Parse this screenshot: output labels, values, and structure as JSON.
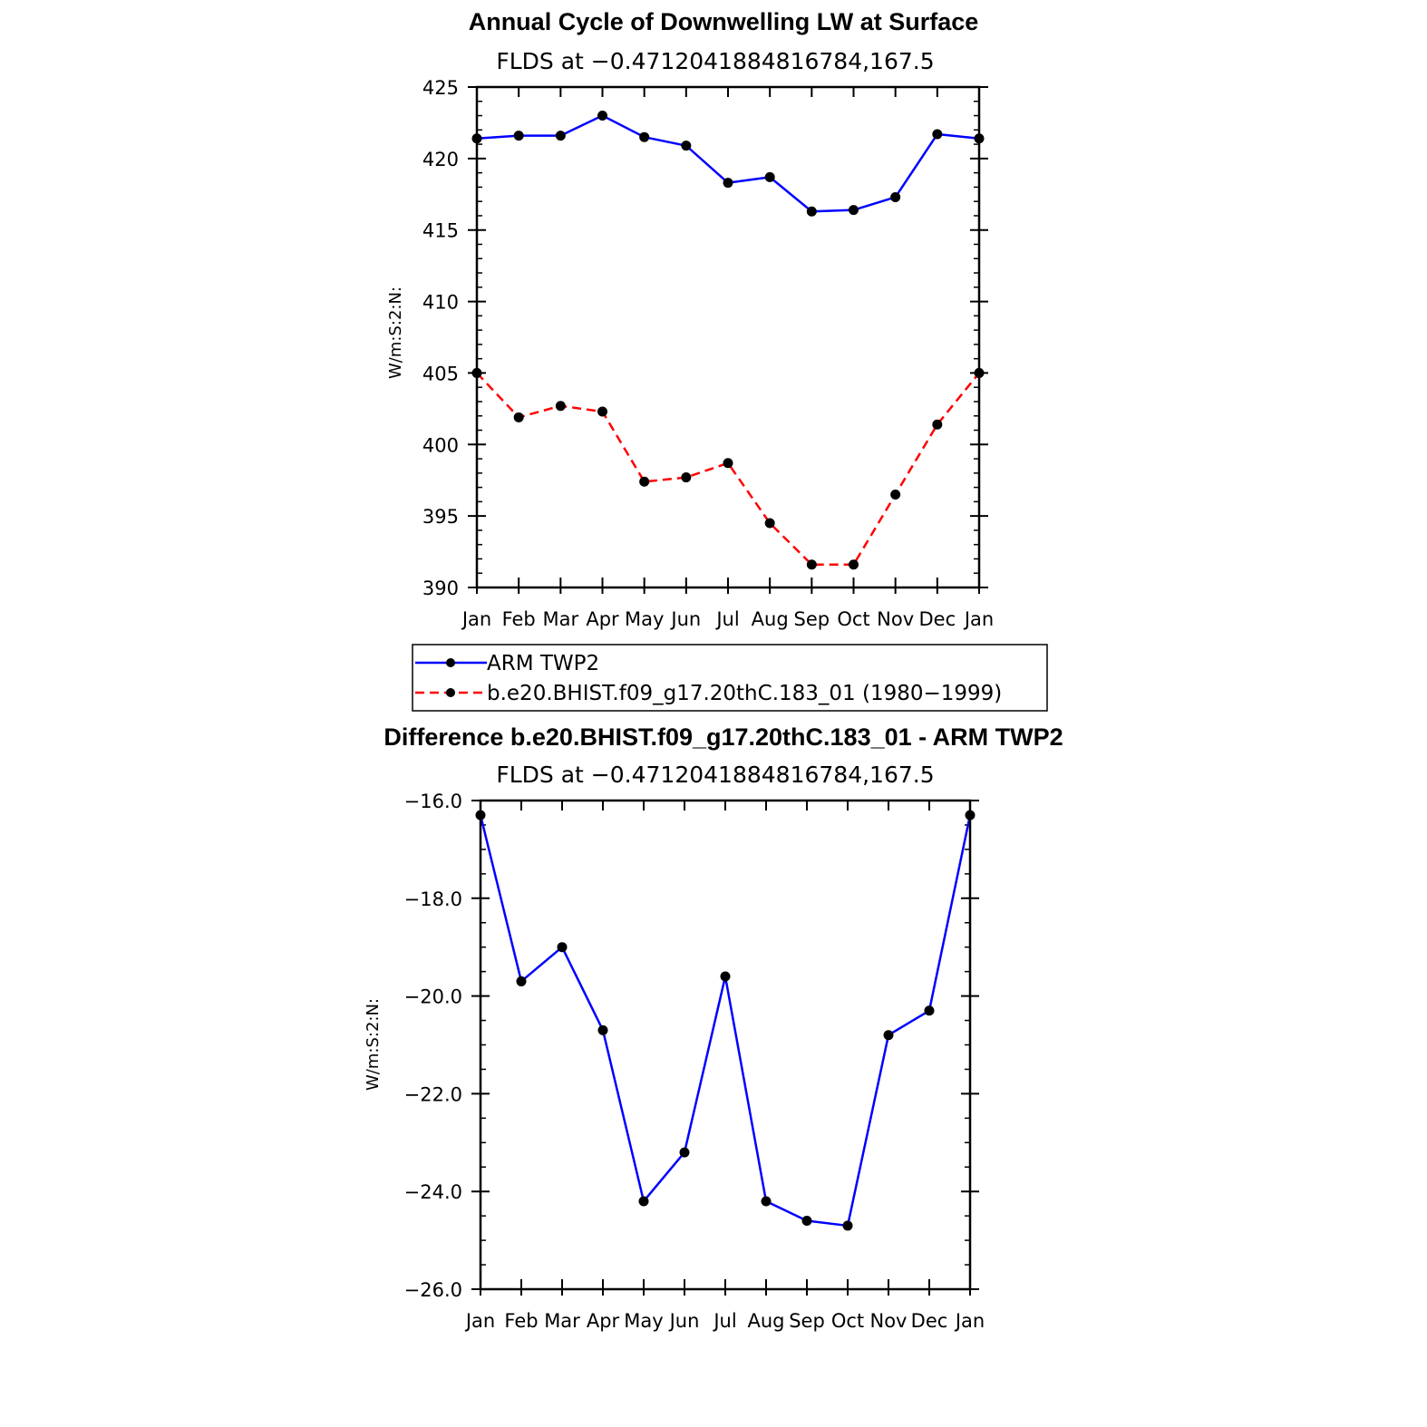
{
  "chart_data": [
    {
      "type": "line",
      "title": "Annual Cycle of Downwelling LW at Surface",
      "subtitle": "FLDS at −0.4712041884816784,167.5",
      "xlabel": "",
      "ylabel": "W/m:S:2:N:",
      "categories": [
        "Jan",
        "Feb",
        "Mar",
        "Apr",
        "May",
        "Jun",
        "Jul",
        "Aug",
        "Sep",
        "Oct",
        "Nov",
        "Dec",
        "Jan"
      ],
      "ylim": [
        390,
        425
      ],
      "yticks": [
        390,
        395,
        400,
        405,
        410,
        415,
        420,
        425
      ],
      "ytick_labels": [
        "390",
        "395",
        "400",
        "405",
        "410",
        "415",
        "420",
        "425"
      ],
      "series": [
        {
          "name": "ARM TWP2",
          "color": "#0000ff",
          "dash": "solid",
          "values": [
            421.4,
            421.6,
            421.6,
            423.0,
            421.5,
            420.9,
            418.3,
            418.7,
            416.3,
            416.4,
            417.3,
            421.7,
            421.4
          ]
        },
        {
          "name": "b.e20.BHIST.f09_g17.20thC.183_01 (1980−1999)",
          "color": "#ff0000",
          "dash": "dashed",
          "values": [
            405.0,
            401.9,
            402.7,
            402.3,
            397.4,
            397.7,
            398.7,
            394.5,
            391.6,
            391.6,
            396.5,
            401.4,
            405.0
          ]
        }
      ],
      "legend": "below"
    },
    {
      "type": "line",
      "title": "Difference b.e20.BHIST.f09_g17.20thC.183_01 - ARM TWP2",
      "subtitle": "FLDS at −0.4712041884816784,167.5",
      "xlabel": "",
      "ylabel": "W/m:S:2:N:",
      "categories": [
        "Jan",
        "Feb",
        "Mar",
        "Apr",
        "May",
        "Jun",
        "Jul",
        "Aug",
        "Sep",
        "Oct",
        "Nov",
        "Dec",
        "Jan"
      ],
      "ylim": [
        -26.0,
        -16.0
      ],
      "yticks": [
        -26,
        -24,
        -22,
        -20,
        -18,
        -16
      ],
      "ytick_labels": [
        "−26.0",
        "−24.0",
        "−22.0",
        "−20.0",
        "−18.0",
        "−16.0"
      ],
      "series": [
        {
          "color": "#0000ff",
          "dash": "solid",
          "values": [
            -16.3,
            -19.7,
            -19.0,
            -20.7,
            -24.2,
            -23.2,
            -19.6,
            -24.2,
            -24.6,
            -24.7,
            -20.8,
            -20.3,
            -16.3
          ]
        }
      ]
    }
  ]
}
